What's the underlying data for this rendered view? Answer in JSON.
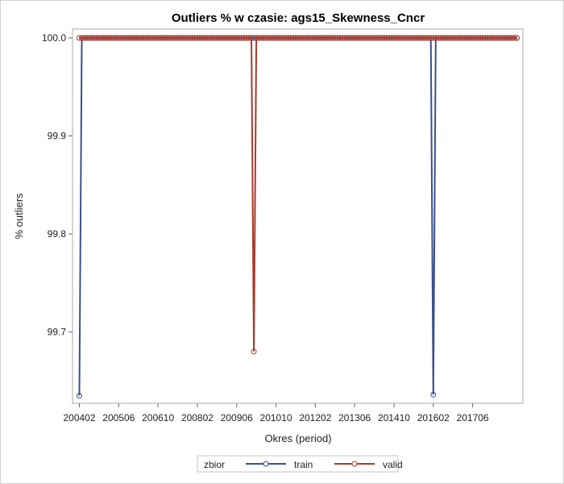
{
  "chart_data": {
    "type": "line",
    "title": "Outliers % w czasie: ags15_Skewness_Cncr",
    "xlabel": "Okres (period)",
    "ylabel": "% outliers",
    "ylim": [
      99.63,
      100.003
    ],
    "yticks": [
      "99.7",
      "99.8",
      "99.9",
      "100.0"
    ],
    "xticks": [
      "200402",
      "200506",
      "200610",
      "200802",
      "200906",
      "201010",
      "201202",
      "201306",
      "201410",
      "201602",
      "201706"
    ],
    "x_start_period": "200402",
    "x_end_period": "201812",
    "grid": false,
    "legend": {
      "title": "zbior",
      "position": "bottom-center"
    },
    "series": [
      {
        "name": "train",
        "color": "#3a4f8f",
        "baseline": 100.0,
        "dips": [
          {
            "period": "200402",
            "value": 99.635
          },
          {
            "period": "201602",
            "value": 99.636
          }
        ]
      },
      {
        "name": "valid",
        "color": "#a83a2e",
        "baseline": 100.0,
        "dips": [
          {
            "period": "201001",
            "value": 99.68
          }
        ]
      }
    ]
  }
}
